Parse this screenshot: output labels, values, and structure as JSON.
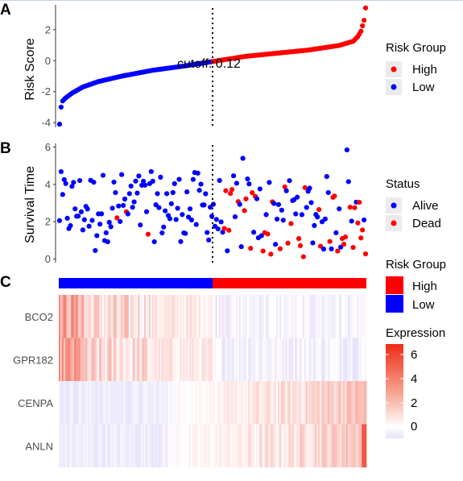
{
  "colors": {
    "high": "#FF0000",
    "low": "#0000FF",
    "alive": "#0000FF",
    "dead": "#FF0000",
    "heat_high": "#EE2B15",
    "heat_mid": "#FFFFFF",
    "heat_low": "#E6E0F8"
  },
  "chart_data": [
    {
      "type": "scatter",
      "panel": "A",
      "ylabel": "Risk Score",
      "yticks": [
        "-4",
        "-2",
        "0",
        "2"
      ],
      "ylim": [
        -4.3,
        3.6
      ],
      "cutoff_label": "cutoff: 0.12",
      "cutoff_value": 0.12,
      "n_samples": 198,
      "n_low": 99,
      "legend": {
        "title": "Risk Group",
        "items": [
          "High",
          "Low"
        ]
      },
      "curve_points": [
        [
          0,
          -4.1
        ],
        [
          1,
          -3.0
        ],
        [
          2,
          -2.6
        ],
        [
          4,
          -2.4
        ],
        [
          8,
          -2.1
        ],
        [
          15,
          -1.7
        ],
        [
          25,
          -1.35
        ],
        [
          40,
          -1.0
        ],
        [
          60,
          -0.62
        ],
        [
          80,
          -0.35
        ],
        [
          99,
          -0.05
        ],
        [
          120,
          0.28
        ],
        [
          140,
          0.48
        ],
        [
          160,
          0.68
        ],
        [
          180,
          0.98
        ],
        [
          189,
          1.25
        ],
        [
          192,
          1.55
        ],
        [
          194,
          1.9
        ],
        [
          196,
          2.6
        ],
        [
          197,
          3.4
        ]
      ]
    },
    {
      "type": "scatter",
      "panel": "B",
      "ylabel": "Survival Time",
      "yticks": [
        "0",
        "2",
        "4",
        "6"
      ],
      "ylim": [
        -0.2,
        6.2
      ],
      "legend": {
        "title": "Status",
        "items": [
          "Alive",
          "Dead"
        ]
      }
    },
    {
      "type": "heatmap",
      "panel": "C",
      "genes": [
        "BCO2",
        "GPR182",
        "CENPA",
        "ANLN"
      ],
      "annotation_legend": {
        "title": "Risk Group",
        "items": [
          "High",
          "Low"
        ]
      },
      "color_legend": {
        "title": "Expression",
        "ticks": [
          "6",
          "4",
          "2",
          "0"
        ],
        "range": [
          -1,
          6.6
        ]
      }
    }
  ]
}
